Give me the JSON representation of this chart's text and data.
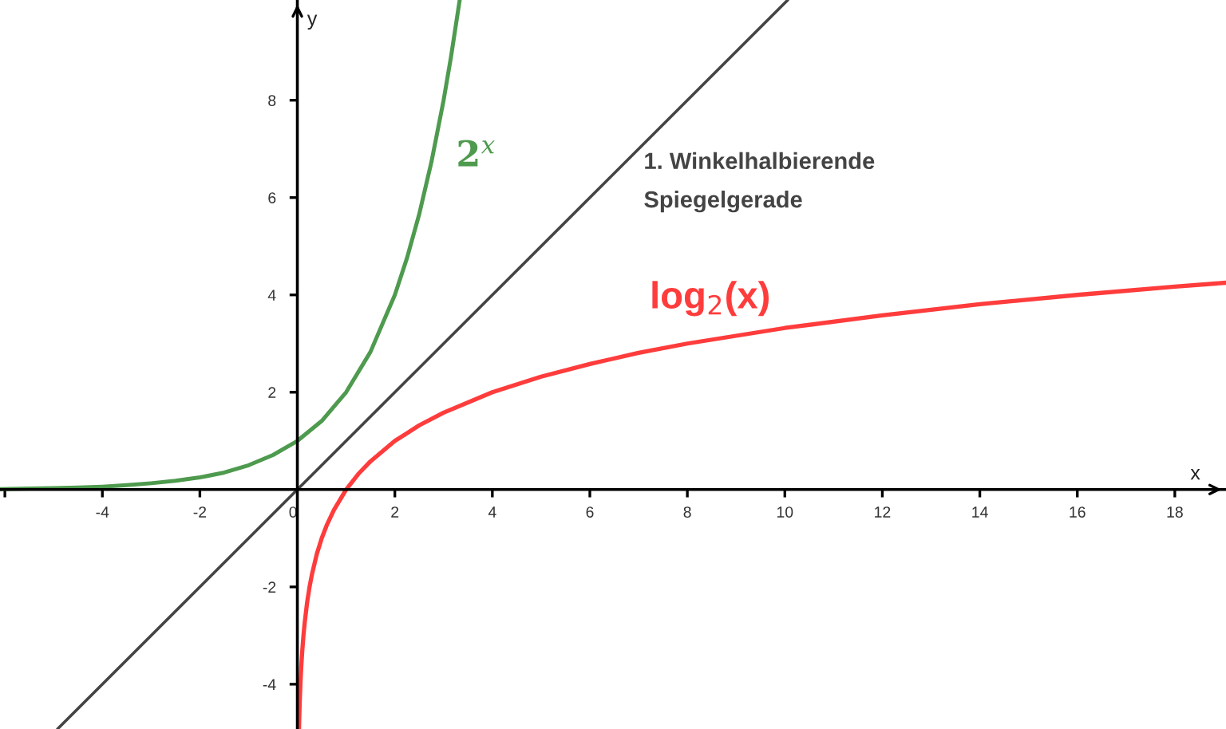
{
  "chart_data": {
    "type": "line",
    "xlabel": "x",
    "ylabel": "y",
    "xlim": [
      -6.1,
      19.05
    ],
    "ylim": [
      -4.92,
      10.06
    ],
    "xticks": [
      {
        "value": -6,
        "label": null
      },
      -4,
      -2,
      0,
      2,
      4,
      6,
      8,
      10,
      12,
      14,
      16,
      18
    ],
    "yticks": [
      -4,
      -2,
      2,
      4,
      6,
      8
    ],
    "grid": false,
    "legend": false,
    "series": [
      {
        "name": "2$^{x}$",
        "color": "#4e9a4e",
        "x": [
          -6.1,
          -5.5,
          -5,
          -4.5,
          -4,
          -3.5,
          -3,
          -2.5,
          -2,
          -1.5,
          -1,
          -0.5,
          0,
          0.5,
          1,
          1.5,
          2,
          2.25,
          2.5,
          2.75,
          3,
          3.15,
          3.33
        ],
        "values": [
          0.01,
          0.02,
          0.03,
          0.04,
          0.06,
          0.09,
          0.13,
          0.18,
          0.25,
          0.35,
          0.5,
          0.71,
          1,
          1.41,
          2,
          2.83,
          4,
          4.76,
          5.66,
          6.73,
          8,
          8.88,
          10.06
        ]
      },
      {
        "name": "1. Winkelhalbierende\nSpiegelgerade",
        "color": "#444444",
        "x": [
          -4.92,
          10.06
        ],
        "values": [
          -4.92,
          10.06
        ]
      },
      {
        "name": "log$_{2}$(x)",
        "color": "#ff3c3c",
        "x": [
          0.033,
          0.04,
          0.05,
          0.065,
          0.08,
          0.1,
          0.125,
          0.15,
          0.2,
          0.25,
          0.3,
          0.4,
          0.5,
          0.6,
          0.75,
          1,
          1.25,
          1.5,
          2,
          2.5,
          3,
          4,
          5,
          6,
          7,
          8,
          10,
          12,
          14,
          16,
          18,
          19.05
        ],
        "values": [
          -4.92,
          -4.64,
          -4.32,
          -3.94,
          -3.64,
          -3.32,
          -3,
          -2.74,
          -2.32,
          -2,
          -1.74,
          -1.32,
          -1,
          -0.74,
          -0.42,
          0,
          0.32,
          0.58,
          1,
          1.32,
          1.58,
          2,
          2.32,
          2.58,
          2.81,
          3,
          3.32,
          3.58,
          3.81,
          4,
          4.17,
          4.25
        ]
      }
    ]
  }
}
